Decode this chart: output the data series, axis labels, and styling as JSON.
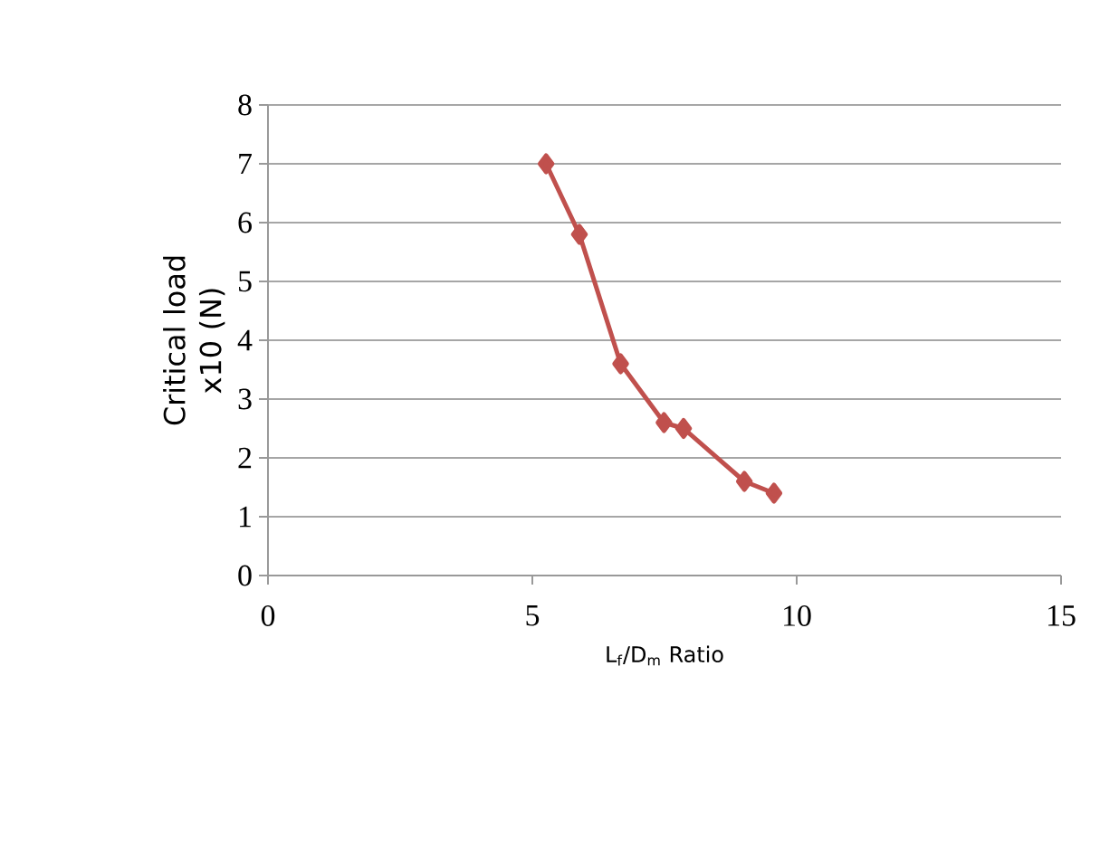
{
  "chart_data": {
    "type": "line",
    "xlabel": "L$_{f}$/D$_{m}$ Ratio",
    "ylabel": "Critical load x10 (N)",
    "x": [
      5.26,
      5.89,
      6.67,
      7.49,
      7.86,
      9.01,
      9.57
    ],
    "series": [
      {
        "color": "#c0504d",
        "values": [
          7,
          5.8,
          3.6,
          2.6,
          2.5,
          1.6,
          1.4
        ]
      }
    ],
    "xlim": [
      0,
      15
    ],
    "xticks": [
      0,
      5,
      10,
      15
    ],
    "ylim": [
      0,
      8
    ],
    "yticks": [
      0,
      1,
      2,
      3,
      4,
      5,
      6,
      7,
      8
    ],
    "grid": "y",
    "marker": "diamond",
    "line_style": "solid"
  }
}
